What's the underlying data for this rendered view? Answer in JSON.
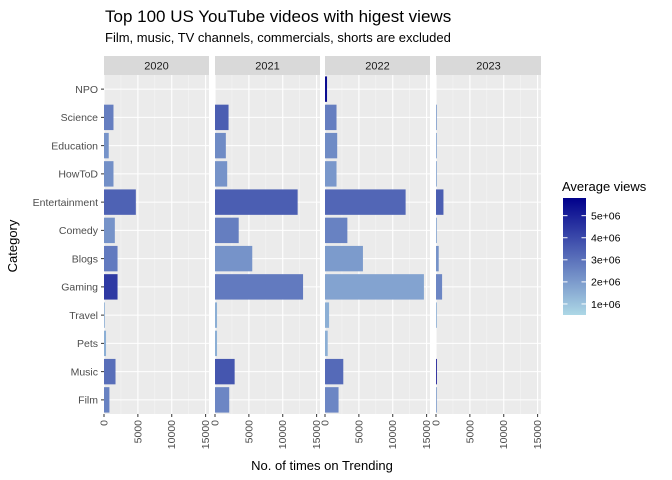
{
  "chart_data": {
    "type": "bar",
    "orientation": "horizontal",
    "title": "Top 100 US YouTube videos with higest views",
    "subtitle": "Film, music, TV channels, commercials, shorts are excluded",
    "xlabel": "No. of times on Trending",
    "ylabel": "Category",
    "xlim": [
      0,
      15500
    ],
    "x_ticks": [
      0,
      5000,
      10000,
      15000
    ],
    "x_tick_labels": [
      "0",
      "5000",
      "10000",
      "15000"
    ],
    "categories": [
      "NPO",
      "Science",
      "Education",
      "HowToD",
      "Entertainment",
      "Comedy",
      "Blogs",
      "Gaming",
      "Travel",
      "Pets",
      "Music",
      "Film"
    ],
    "facets": [
      {
        "label": "2020",
        "values": [
          0,
          1400,
          700,
          1400,
          4700,
          1600,
          2000,
          2000,
          100,
          300,
          1700,
          800
        ],
        "avg_views": [
          0,
          2700000,
          2200000,
          2300000,
          3400000,
          2200000,
          2800000,
          4400000,
          1500000,
          1500000,
          3100000,
          2600000
        ]
      },
      {
        "label": "2021",
        "values": [
          0,
          2000,
          1600,
          1800,
          12200,
          3500,
          5500,
          13000,
          300,
          300,
          2900,
          2100
        ],
        "avg_views": [
          0,
          3500000,
          2400000,
          2200000,
          3500000,
          2700000,
          2200000,
          2800000,
          1500000,
          1500000,
          3700000,
          2500000
        ]
      },
      {
        "label": "2022",
        "values": [
          300,
          1700,
          1800,
          1700,
          11900,
          3300,
          5600,
          14600,
          600,
          400,
          2700,
          2000
        ],
        "avg_views": [
          5500000,
          2700000,
          2400000,
          2100000,
          3300000,
          2600000,
          2000000,
          1800000,
          1500000,
          1500000,
          3200000,
          2500000
        ]
      },
      {
        "label": "2023",
        "values": [
          0,
          100,
          100,
          100,
          1100,
          100,
          400,
          900,
          50,
          0,
          100,
          100
        ],
        "avg_views": [
          0,
          2000000,
          1800000,
          1800000,
          3500000,
          1800000,
          2200000,
          2500000,
          1500000,
          0,
          5500000,
          2000000
        ]
      }
    ],
    "legend": {
      "title": "Average views",
      "position": "right",
      "range": [
        500000,
        5800000
      ],
      "breaks": [
        1000000,
        2000000,
        3000000,
        4000000,
        5000000
      ],
      "labels": [
        "1e+06",
        "2e+06",
        "3e+06",
        "4e+06",
        "5e+06"
      ],
      "color_low": "#add8e6",
      "color_high": "#00008b"
    },
    "panel_background": "#ebebeb",
    "strip_background": "#d9d9d9",
    "grid": true
  }
}
